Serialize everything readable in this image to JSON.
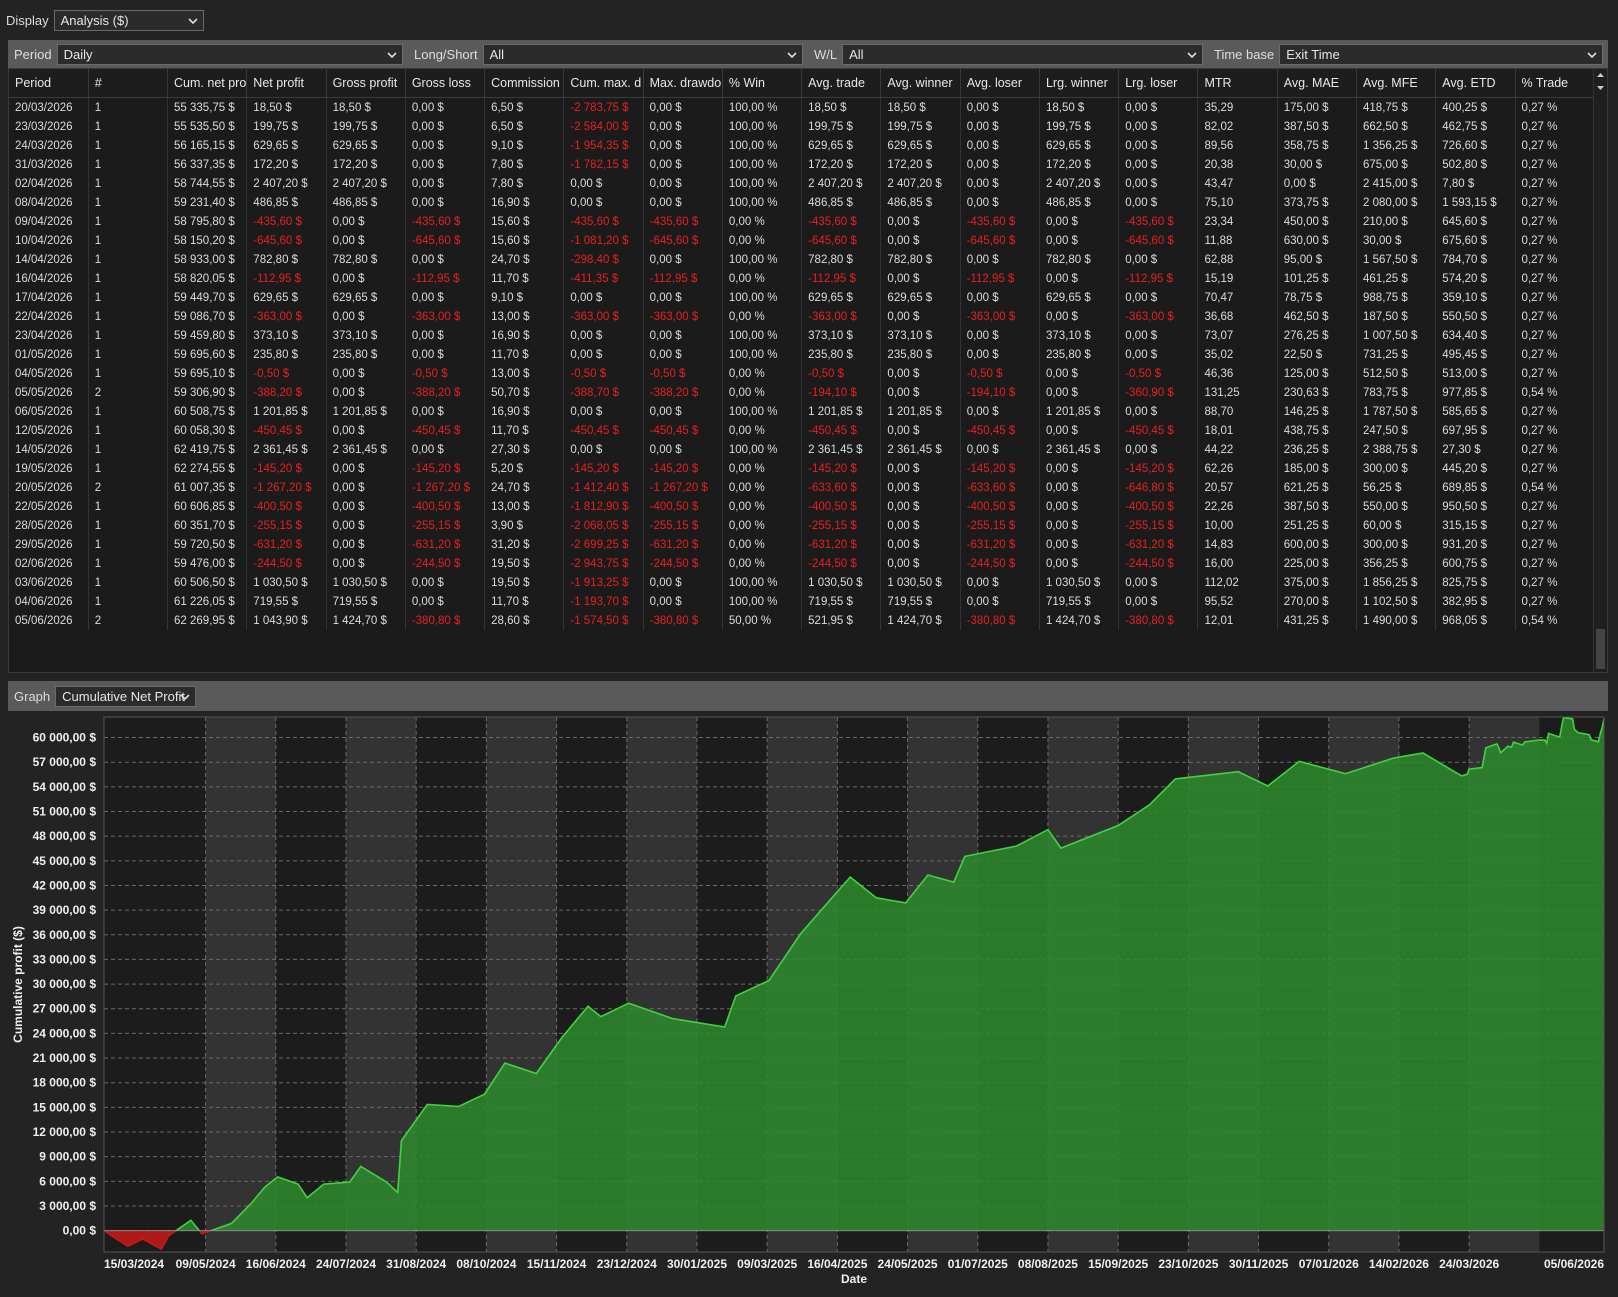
{
  "display": {
    "label": "Display",
    "value": "Analysis ($)"
  },
  "filters": [
    {
      "label": "Period",
      "value": "Daily"
    },
    {
      "label": "Long/Short",
      "value": "All"
    },
    {
      "label": "W/L",
      "value": "All"
    },
    {
      "label": "Time base",
      "value": "Exit Time"
    }
  ],
  "table": {
    "columns": [
      "Period",
      "#",
      "Cum. net pro",
      "Net profit",
      "Gross profit",
      "Gross loss",
      "Commission",
      "Cum. max. d",
      "Max. drawdo",
      "% Win",
      "Avg. trade",
      "Avg. winner",
      "Avg. loser",
      "Lrg. winner",
      "Lrg. loser",
      "MTR",
      "Avg. MAE",
      "Avg. MFE",
      "Avg. ETD",
      "% Trade"
    ],
    "rows": [
      [
        "20/03/2026",
        "1",
        "55 335,75 $",
        "18,50 $",
        "18,50 $",
        "0,00 $",
        "6,50 $",
        "-2 783,75 $",
        "0,00 $",
        "100,00 %",
        "18,50 $",
        "18,50 $",
        "0,00 $",
        "18,50 $",
        "0,00 $",
        "35,29",
        "175,00 $",
        "418,75 $",
        "400,25 $",
        "0,27 %"
      ],
      [
        "23/03/2026",
        "1",
        "55 535,50 $",
        "199,75 $",
        "199,75 $",
        "0,00 $",
        "6,50 $",
        "-2 584,00 $",
        "0,00 $",
        "100,00 %",
        "199,75 $",
        "199,75 $",
        "0,00 $",
        "199,75 $",
        "0,00 $",
        "82,02",
        "387,50 $",
        "662,50 $",
        "462,75 $",
        "0,27 %"
      ],
      [
        "24/03/2026",
        "1",
        "56 165,15 $",
        "629,65 $",
        "629,65 $",
        "0,00 $",
        "9,10 $",
        "-1 954,35 $",
        "0,00 $",
        "100,00 %",
        "629,65 $",
        "629,65 $",
        "0,00 $",
        "629,65 $",
        "0,00 $",
        "89,56",
        "358,75 $",
        "1 356,25 $",
        "726,60 $",
        "0,27 %"
      ],
      [
        "31/03/2026",
        "1",
        "56 337,35 $",
        "172,20 $",
        "172,20 $",
        "0,00 $",
        "7,80 $",
        "-1 782,15 $",
        "0,00 $",
        "100,00 %",
        "172,20 $",
        "172,20 $",
        "0,00 $",
        "172,20 $",
        "0,00 $",
        "20,38",
        "30,00 $",
        "675,00 $",
        "502,80 $",
        "0,27 %"
      ],
      [
        "02/04/2026",
        "1",
        "58 744,55 $",
        "2 407,20 $",
        "2 407,20 $",
        "0,00 $",
        "7,80 $",
        "0,00 $",
        "0,00 $",
        "100,00 %",
        "2 407,20 $",
        "2 407,20 $",
        "0,00 $",
        "2 407,20 $",
        "0,00 $",
        "43,47",
        "0,00 $",
        "2 415,00 $",
        "7,80 $",
        "0,27 %"
      ],
      [
        "08/04/2026",
        "1",
        "59 231,40 $",
        "486,85 $",
        "486,85 $",
        "0,00 $",
        "16,90 $",
        "0,00 $",
        "0,00 $",
        "100,00 %",
        "486,85 $",
        "486,85 $",
        "0,00 $",
        "486,85 $",
        "0,00 $",
        "75,10",
        "373,75 $",
        "2 080,00 $",
        "1 593,15 $",
        "0,27 %"
      ],
      [
        "09/04/2026",
        "1",
        "58 795,80 $",
        "-435,60 $",
        "0,00 $",
        "-435,60 $",
        "15,60 $",
        "-435,60 $",
        "-435,60 $",
        "0,00 %",
        "-435,60 $",
        "0,00 $",
        "-435,60 $",
        "0,00 $",
        "-435,60 $",
        "23,34",
        "450,00 $",
        "210,00 $",
        "645,60 $",
        "0,27 %"
      ],
      [
        "10/04/2026",
        "1",
        "58 150,20 $",
        "-645,60 $",
        "0,00 $",
        "-645,60 $",
        "15,60 $",
        "-1 081,20 $",
        "-645,60 $",
        "0,00 %",
        "-645,60 $",
        "0,00 $",
        "-645,60 $",
        "0,00 $",
        "-645,60 $",
        "11,88",
        "630,00 $",
        "30,00 $",
        "675,60 $",
        "0,27 %"
      ],
      [
        "14/04/2026",
        "1",
        "58 933,00 $",
        "782,80 $",
        "782,80 $",
        "0,00 $",
        "24,70 $",
        "-298,40 $",
        "0,00 $",
        "100,00 %",
        "782,80 $",
        "782,80 $",
        "0,00 $",
        "782,80 $",
        "0,00 $",
        "62,88",
        "95,00 $",
        "1 567,50 $",
        "784,70 $",
        "0,27 %"
      ],
      [
        "16/04/2026",
        "1",
        "58 820,05 $",
        "-112,95 $",
        "0,00 $",
        "-112,95 $",
        "11,70 $",
        "-411,35 $",
        "-112,95 $",
        "0,00 %",
        "-112,95 $",
        "0,00 $",
        "-112,95 $",
        "0,00 $",
        "-112,95 $",
        "15,19",
        "101,25 $",
        "461,25 $",
        "574,20 $",
        "0,27 %"
      ],
      [
        "17/04/2026",
        "1",
        "59 449,70 $",
        "629,65 $",
        "629,65 $",
        "0,00 $",
        "9,10 $",
        "0,00 $",
        "0,00 $",
        "100,00 %",
        "629,65 $",
        "629,65 $",
        "0,00 $",
        "629,65 $",
        "0,00 $",
        "70,47",
        "78,75 $",
        "988,75 $",
        "359,10 $",
        "0,27 %"
      ],
      [
        "22/04/2026",
        "1",
        "59 086,70 $",
        "-363,00 $",
        "0,00 $",
        "-363,00 $",
        "13,00 $",
        "-363,00 $",
        "-363,00 $",
        "0,00 %",
        "-363,00 $",
        "0,00 $",
        "-363,00 $",
        "0,00 $",
        "-363,00 $",
        "36,68",
        "462,50 $",
        "187,50 $",
        "550,50 $",
        "0,27 %"
      ],
      [
        "23/04/2026",
        "1",
        "59 459,80 $",
        "373,10 $",
        "373,10 $",
        "0,00 $",
        "16,90 $",
        "0,00 $",
        "0,00 $",
        "100,00 %",
        "373,10 $",
        "373,10 $",
        "0,00 $",
        "373,10 $",
        "0,00 $",
        "73,07",
        "276,25 $",
        "1 007,50 $",
        "634,40 $",
        "0,27 %"
      ],
      [
        "01/05/2026",
        "1",
        "59 695,60 $",
        "235,80 $",
        "235,80 $",
        "0,00 $",
        "11,70 $",
        "0,00 $",
        "0,00 $",
        "100,00 %",
        "235,80 $",
        "235,80 $",
        "0,00 $",
        "235,80 $",
        "0,00 $",
        "35,02",
        "22,50 $",
        "731,25 $",
        "495,45 $",
        "0,27 %"
      ],
      [
        "04/05/2026",
        "1",
        "59 695,10 $",
        "-0,50 $",
        "0,00 $",
        "-0,50 $",
        "13,00 $",
        "-0,50 $",
        "-0,50 $",
        "0,00 %",
        "-0,50 $",
        "0,00 $",
        "-0,50 $",
        "0,00 $",
        "-0,50 $",
        "46,36",
        "125,00 $",
        "512,50 $",
        "513,00 $",
        "0,27 %"
      ],
      [
        "05/05/2026",
        "2",
        "59 306,90 $",
        "-388,20 $",
        "0,00 $",
        "-388,20 $",
        "50,70 $",
        "-388,70 $",
        "-388,20 $",
        "0,00 %",
        "-194,10 $",
        "0,00 $",
        "-194,10 $",
        "0,00 $",
        "-360,90 $",
        "131,25",
        "230,63 $",
        "783,75 $",
        "977,85 $",
        "0,54 %"
      ],
      [
        "06/05/2026",
        "1",
        "60 508,75 $",
        "1 201,85 $",
        "1 201,85 $",
        "0,00 $",
        "16,90 $",
        "0,00 $",
        "0,00 $",
        "100,00 %",
        "1 201,85 $",
        "1 201,85 $",
        "0,00 $",
        "1 201,85 $",
        "0,00 $",
        "88,70",
        "146,25 $",
        "1 787,50 $",
        "585,65 $",
        "0,27 %"
      ],
      [
        "12/05/2026",
        "1",
        "60 058,30 $",
        "-450,45 $",
        "0,00 $",
        "-450,45 $",
        "11,70 $",
        "-450,45 $",
        "-450,45 $",
        "0,00 %",
        "-450,45 $",
        "0,00 $",
        "-450,45 $",
        "0,00 $",
        "-450,45 $",
        "18,01",
        "438,75 $",
        "247,50 $",
        "697,95 $",
        "0,27 %"
      ],
      [
        "14/05/2026",
        "1",
        "62 419,75 $",
        "2 361,45 $",
        "2 361,45 $",
        "0,00 $",
        "27,30 $",
        "0,00 $",
        "0,00 $",
        "100,00 %",
        "2 361,45 $",
        "2 361,45 $",
        "0,00 $",
        "2 361,45 $",
        "0,00 $",
        "44,22",
        "236,25 $",
        "2 388,75 $",
        "27,30 $",
        "0,27 %"
      ],
      [
        "19/05/2026",
        "1",
        "62 274,55 $",
        "-145,20 $",
        "0,00 $",
        "-145,20 $",
        "5,20 $",
        "-145,20 $",
        "-145,20 $",
        "0,00 %",
        "-145,20 $",
        "0,00 $",
        "-145,20 $",
        "0,00 $",
        "-145,20 $",
        "62,26",
        "185,00 $",
        "300,00 $",
        "445,20 $",
        "0,27 %"
      ],
      [
        "20/05/2026",
        "2",
        "61 007,35 $",
        "-1 267,20 $",
        "0,00 $",
        "-1 267,20 $",
        "24,70 $",
        "-1 412,40 $",
        "-1 267,20 $",
        "0,00 %",
        "-633,60 $",
        "0,00 $",
        "-633,60 $",
        "0,00 $",
        "-646,80 $",
        "20,57",
        "621,25 $",
        "56,25 $",
        "689,85 $",
        "0,54 %"
      ],
      [
        "22/05/2026",
        "1",
        "60 606,85 $",
        "-400,50 $",
        "0,00 $",
        "-400,50 $",
        "13,00 $",
        "-1 812,90 $",
        "-400,50 $",
        "0,00 %",
        "-400,50 $",
        "0,00 $",
        "-400,50 $",
        "0,00 $",
        "-400,50 $",
        "22,26",
        "387,50 $",
        "550,00 $",
        "950,50 $",
        "0,27 %"
      ],
      [
        "28/05/2026",
        "1",
        "60 351,70 $",
        "-255,15 $",
        "0,00 $",
        "-255,15 $",
        "3,90 $",
        "-2 068,05 $",
        "-255,15 $",
        "0,00 %",
        "-255,15 $",
        "0,00 $",
        "-255,15 $",
        "0,00 $",
        "-255,15 $",
        "10,00",
        "251,25 $",
        "60,00 $",
        "315,15 $",
        "0,27 %"
      ],
      [
        "29/05/2026",
        "1",
        "59 720,50 $",
        "-631,20 $",
        "0,00 $",
        "-631,20 $",
        "31,20 $",
        "-2 699,25 $",
        "-631,20 $",
        "0,00 %",
        "-631,20 $",
        "0,00 $",
        "-631,20 $",
        "0,00 $",
        "-631,20 $",
        "14,83",
        "600,00 $",
        "300,00 $",
        "931,20 $",
        "0,27 %"
      ],
      [
        "02/06/2026",
        "1",
        "59 476,00 $",
        "-244,50 $",
        "0,00 $",
        "-244,50 $",
        "19,50 $",
        "-2 943,75 $",
        "-244,50 $",
        "0,00 %",
        "-244,50 $",
        "0,00 $",
        "-244,50 $",
        "0,00 $",
        "-244,50 $",
        "16,00",
        "225,00 $",
        "356,25 $",
        "600,75 $",
        "0,27 %"
      ],
      [
        "03/06/2026",
        "1",
        "60 506,50 $",
        "1 030,50 $",
        "1 030,50 $",
        "0,00 $",
        "19,50 $",
        "-1 913,25 $",
        "0,00 $",
        "100,00 %",
        "1 030,50 $",
        "1 030,50 $",
        "0,00 $",
        "1 030,50 $",
        "0,00 $",
        "112,02",
        "375,00 $",
        "1 856,25 $",
        "825,75 $",
        "0,27 %"
      ],
      [
        "04/06/2026",
        "1",
        "61 226,05 $",
        "719,55 $",
        "719,55 $",
        "0,00 $",
        "11,70 $",
        "-1 193,70 $",
        "0,00 $",
        "100,00 %",
        "719,55 $",
        "719,55 $",
        "0,00 $",
        "719,55 $",
        "0,00 $",
        "95,52",
        "270,00 $",
        "1 102,50 $",
        "382,95 $",
        "0,27 %"
      ],
      [
        "05/06/2026",
        "2",
        "62 269,95 $",
        "1 043,90 $",
        "1 424,70 $",
        "-380,80 $",
        "28,60 $",
        "-1 574,50 $",
        "-380,80 $",
        "50,00 %",
        "521,95 $",
        "1 424,70 $",
        "-380,80 $",
        "1 424,70 $",
        "-380,80 $",
        "12,01",
        "431,25 $",
        "1 490,00 $",
        "968,05 $",
        "0,54 %"
      ]
    ]
  },
  "graph": {
    "label": "Graph",
    "value": "Cumulative Net Profit"
  },
  "chart_data": {
    "type": "area",
    "y_label": "Cumulative profit ($)",
    "x_label": "Date",
    "x": [
      "15/03/2024",
      "20/03/2024",
      "28/03/2024",
      "05/04/2024",
      "15/04/2024",
      "19/04/2024",
      "01/05/2024",
      "07/05/2024",
      "15/05/2024",
      "23/05/2024",
      "03/06/2024",
      "10/06/2024",
      "17/06/2024",
      "28/06/2024",
      "03/07/2024",
      "12/07/2024",
      "26/07/2024",
      "01/08/2024",
      "15/08/2024",
      "21/08/2024",
      "23/08/2024",
      "06/09/2024",
      "23/09/2024",
      "07/10/2024",
      "18/10/2024",
      "04/11/2024",
      "18/11/2024",
      "02/12/2024",
      "09/12/2024",
      "24/12/2024",
      "17/01/2025",
      "14/02/2025",
      "20/02/2025",
      "10/03/2025",
      "27/03/2025",
      "18/04/2025",
      "23/04/2025",
      "07/05/2025",
      "23/05/2025",
      "04/06/2025",
      "18/06/2025",
      "24/06/2025",
      "22/07/2025",
      "08/08/2025",
      "15/08/2025",
      "15/09/2025",
      "02/10/2025",
      "16/10/2025",
      "19/11/2025",
      "05/12/2025",
      "22/12/2025",
      "16/01/2026",
      "11/02/2026",
      "27/02/2026",
      "16/03/2026",
      "20/03/2026",
      "23/03/2026",
      "24/03/2026",
      "31/03/2026",
      "02/04/2026",
      "08/04/2026",
      "09/04/2026",
      "10/04/2026",
      "14/04/2026",
      "16/04/2026",
      "17/04/2026",
      "22/04/2026",
      "23/04/2026",
      "01/05/2026",
      "04/05/2026",
      "05/05/2026",
      "06/05/2026",
      "12/05/2026",
      "14/05/2026",
      "19/05/2026",
      "20/05/2026",
      "22/05/2026",
      "28/05/2026",
      "29/05/2026",
      "02/06/2026",
      "03/06/2026",
      "04/06/2026",
      "05/06/2026"
    ],
    "values": [
      0,
      -750,
      -1900,
      -1000,
      -2260,
      -630,
      1260,
      -380,
      250,
      880,
      3400,
      5280,
      6540,
      5660,
      4000,
      5660,
      5910,
      7800,
      5910,
      4650,
      10940,
      15350,
      15100,
      16600,
      20380,
      19120,
      23520,
      27300,
      26040,
      27680,
      25790,
      24780,
      28560,
      30440,
      36100,
      41770,
      43020,
      40500,
      39880,
      43270,
      42400,
      45540,
      46800,
      48800,
      46550,
      49300,
      51830,
      54970,
      55850,
      54100,
      57100,
      55600,
      57500,
      58120,
      55850,
      55335.75,
      55535.5,
      56165.15,
      56337.35,
      58744.55,
      59231.4,
      58795.8,
      58150.2,
      58933,
      58820.05,
      59449.7,
      59086.7,
      59459.8,
      59695.6,
      59695.1,
      59306.9,
      60508.75,
      60058.3,
      62419.75,
      62274.55,
      61007.35,
      60606.85,
      60351.7,
      59720.5,
      59476,
      60506.5,
      61226.05,
      62269.95
    ],
    "color": "#2d8a2d",
    "line_color": "#3ed43e",
    "negative_color": "#c81818",
    "grid": true,
    "xlim": [
      "15/03/2024",
      "05/06/2026"
    ],
    "xticks": [
      "15/03/2024",
      "09/05/2024",
      "16/06/2024",
      "24/07/2024",
      "31/08/2024",
      "08/10/2024",
      "15/11/2024",
      "23/12/2024",
      "30/01/2025",
      "09/03/2025",
      "16/04/2025",
      "24/05/2025",
      "01/07/2025",
      "08/08/2025",
      "15/09/2025",
      "23/10/2025",
      "30/11/2025",
      "07/01/2026",
      "14/02/2026",
      "24/03/2026",
      "05/06/2026"
    ],
    "ylim": [
      -2600,
      62500
    ],
    "yticks": [
      {
        "value": 0,
        "label": "0,00 $"
      },
      {
        "value": 3000,
        "label": "3 000,00 $"
      },
      {
        "value": 6000,
        "label": "6 000,00 $"
      },
      {
        "value": 9000,
        "label": "9 000,00 $"
      },
      {
        "value": 12000,
        "label": "12 000,00 $"
      },
      {
        "value": 15000,
        "label": "15 000,00 $"
      },
      {
        "value": 18000,
        "label": "18 000,00 $"
      },
      {
        "value": 21000,
        "label": "21 000,00 $"
      },
      {
        "value": 24000,
        "label": "24 000,00 $"
      },
      {
        "value": 27000,
        "label": "27 000,00 $"
      },
      {
        "value": 30000,
        "label": "30 000,00 $"
      },
      {
        "value": 33000,
        "label": "33 000,00 $"
      },
      {
        "value": 36000,
        "label": "36 000,00 $"
      },
      {
        "value": 39000,
        "label": "39 000,00 $"
      },
      {
        "value": 42000,
        "label": "42 000,00 $"
      },
      {
        "value": 45000,
        "label": "45 000,00 $"
      },
      {
        "value": 48000,
        "label": "48 000,00 $"
      },
      {
        "value": 51000,
        "label": "51 000,00 $"
      },
      {
        "value": 54000,
        "label": "54 000,00 $"
      },
      {
        "value": 57000,
        "label": "57 000,00 $"
      },
      {
        "value": 60000,
        "label": "60 000,00 $"
      }
    ]
  }
}
